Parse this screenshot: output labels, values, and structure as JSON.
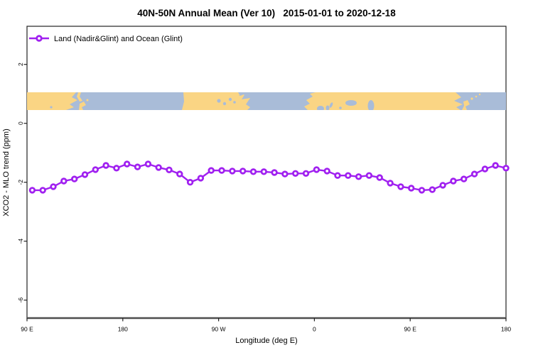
{
  "title": "40N-50N Annual Mean (Ver 10)   2015-01-01 to 2020-12-18",
  "legend": {
    "label": "Land (Nadir&Glint) and Ocean (Glint)"
  },
  "axes": {
    "xlabel": "Longitude (deg E)",
    "ylabel": "XCO2 - MLO trend (ppm)",
    "x_ticks": [
      {
        "lon": 90,
        "label": "90 E"
      },
      {
        "lon": 180,
        "label": "180"
      },
      {
        "lon": 270,
        "label": "90 W"
      },
      {
        "lon": 360,
        "label": "0"
      },
      {
        "lon": 450,
        "label": "90 E"
      },
      {
        "lon": 540,
        "label": "180"
      }
    ],
    "y_ticks": [
      {
        "value": 2,
        "label": "2"
      },
      {
        "value": 0,
        "label": "0"
      },
      {
        "value": -2,
        "label": "-2"
      },
      {
        "value": -4,
        "label": "-4"
      },
      {
        "value": -6,
        "label": "-6"
      }
    ]
  },
  "colors": {
    "line": "#A020F0",
    "marker_fill": "#ffffff",
    "land": "#FAD584",
    "ocean": "#A9BCD8",
    "axis_box": "#222222",
    "axis_bottom": "#4d4d4d"
  },
  "chart_data": {
    "type": "line",
    "title": "40N-50N Annual Mean (Ver 10)   2015-01-01 to 2020-12-18",
    "xlabel": "Longitude (deg E)",
    "ylabel": "XCO2 - MLO trend (ppm)",
    "xlim": [
      90,
      545
    ],
    "ylim": [
      -6.6,
      3.3
    ],
    "x_tick_lons": [
      90,
      180,
      270,
      360,
      450,
      540
    ],
    "x_tick_labels": [
      "90 E",
      "180",
      "90 W",
      "0",
      "90 E",
      "180"
    ],
    "y_tick_values": [
      2,
      0,
      -2,
      -4,
      -6
    ],
    "grid": false,
    "legend_position": "top-left",
    "inset_map": {
      "description": "40N-50N latitude band land/ocean strip map",
      "land_color": "#FAD584",
      "ocean_color": "#A9BCD8"
    },
    "series": [
      {
        "name": "Land (Nadir&Glint) and Ocean (Glint)",
        "color": "#A020F0",
        "marker": "open-circle",
        "x": [
          95,
          105,
          115,
          125,
          135,
          145,
          155,
          165,
          175,
          185,
          195,
          205,
          215,
          225,
          235,
          245,
          255,
          265,
          275,
          285,
          295,
          305,
          315,
          325,
          335,
          345,
          355,
          365,
          375,
          385,
          395,
          405,
          415,
          425,
          435,
          445,
          455,
          465,
          475,
          485,
          495,
          505,
          515,
          525,
          535,
          545
        ],
        "values": [
          -2.27,
          -2.27,
          -2.15,
          -1.96,
          -1.89,
          -1.74,
          -1.57,
          -1.43,
          -1.52,
          -1.38,
          -1.48,
          -1.38,
          -1.5,
          -1.58,
          -1.72,
          -2.0,
          -1.86,
          -1.6,
          -1.6,
          -1.62,
          -1.62,
          -1.64,
          -1.64,
          -1.67,
          -1.72,
          -1.7,
          -1.7,
          -1.57,
          -1.62,
          -1.77,
          -1.77,
          -1.81,
          -1.77,
          -1.84,
          -2.03,
          -2.15,
          -2.2,
          -2.27,
          -2.25,
          -2.1,
          -1.96,
          -1.89,
          -1.72,
          -1.55,
          -1.43,
          -1.52
        ]
      }
    ]
  }
}
